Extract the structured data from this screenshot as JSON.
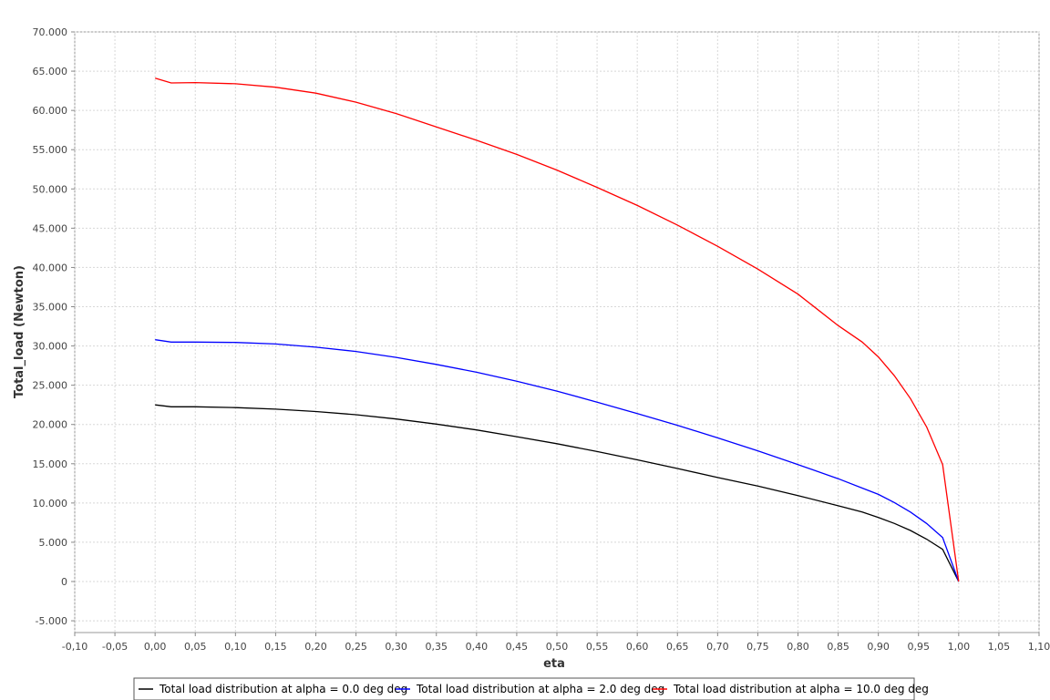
{
  "chart_data": {
    "type": "line",
    "xlabel": "eta",
    "ylabel": "Total_load (Newton)",
    "xlim": [
      -0.1,
      1.1
    ],
    "ylim": [
      -6500,
      70000
    ],
    "x_ticks": [
      -0.1,
      -0.05,
      0.0,
      0.05,
      0.1,
      0.15,
      0.2,
      0.25,
      0.3,
      0.35,
      0.4,
      0.45,
      0.5,
      0.55,
      0.6,
      0.65,
      0.7,
      0.75,
      0.8,
      0.85,
      0.9,
      0.95,
      1.0,
      1.05,
      1.1
    ],
    "x_tick_labels": [
      "-0,10",
      "-0,05",
      "0,00",
      "0,05",
      "0,10",
      "0,15",
      "0,20",
      "0,25",
      "0,30",
      "0,35",
      "0,40",
      "0,45",
      "0,50",
      "0,55",
      "0,60",
      "0,65",
      "0,70",
      "0,75",
      "0,80",
      "0,85",
      "0,90",
      "0,95",
      "1,00",
      "1,05",
      "1,10"
    ],
    "y_ticks": [
      -5000,
      0,
      5000,
      10000,
      15000,
      20000,
      25000,
      30000,
      35000,
      40000,
      45000,
      50000,
      55000,
      60000,
      65000,
      70000
    ],
    "y_tick_labels": [
      "-5.000",
      "0",
      "5.000",
      "10.000",
      "15.000",
      "20.000",
      "25.000",
      "30.000",
      "35.000",
      "40.000",
      "45.000",
      "50.000",
      "55.000",
      "60.000",
      "65.000",
      "70.000"
    ],
    "grid": true,
    "legend_position": "bottom",
    "series": [
      {
        "name": "Total load distribution at alpha = 0.0 deg deg",
        "color": "#000000",
        "x": [
          0.0,
          0.02,
          0.05,
          0.1,
          0.15,
          0.2,
          0.25,
          0.3,
          0.35,
          0.4,
          0.45,
          0.5,
          0.55,
          0.6,
          0.65,
          0.7,
          0.75,
          0.8,
          0.85,
          0.88,
          0.9,
          0.92,
          0.94,
          0.96,
          0.98,
          1.0
        ],
        "y": [
          22500,
          22250,
          22250,
          22150,
          21950,
          21650,
          21250,
          20700,
          20050,
          19300,
          18450,
          17550,
          16550,
          15500,
          14400,
          13250,
          12150,
          10950,
          9650,
          8850,
          8150,
          7400,
          6500,
          5400,
          4100,
          0
        ]
      },
      {
        "name": "Total load distribution at alpha = 2.0 deg deg",
        "color": "#0000ff",
        "x": [
          0.0,
          0.02,
          0.05,
          0.1,
          0.15,
          0.2,
          0.25,
          0.3,
          0.35,
          0.4,
          0.45,
          0.5,
          0.55,
          0.6,
          0.65,
          0.7,
          0.75,
          0.8,
          0.85,
          0.88,
          0.9,
          0.92,
          0.94,
          0.96,
          0.98,
          1.0
        ],
        "y": [
          30800,
          30500,
          30500,
          30450,
          30250,
          29850,
          29300,
          28550,
          27650,
          26650,
          25500,
          24250,
          22850,
          21400,
          19900,
          18300,
          16650,
          14900,
          13100,
          11900,
          11100,
          10050,
          8850,
          7400,
          5600,
          0
        ]
      },
      {
        "name": "Total load distribution at alpha = 10.0 deg deg",
        "color": "#ff0000",
        "x": [
          0.0,
          0.02,
          0.05,
          0.1,
          0.15,
          0.2,
          0.25,
          0.3,
          0.35,
          0.4,
          0.45,
          0.5,
          0.55,
          0.6,
          0.65,
          0.7,
          0.75,
          0.8,
          0.85,
          0.88,
          0.9,
          0.92,
          0.94,
          0.96,
          0.98,
          1.0
        ],
        "y": [
          64100,
          63500,
          63550,
          63400,
          62950,
          62200,
          61050,
          59600,
          57900,
          56200,
          54400,
          52400,
          50200,
          47900,
          45400,
          42700,
          39800,
          36600,
          32600,
          30500,
          28600,
          26200,
          23300,
          19700,
          14900,
          0
        ]
      }
    ]
  }
}
